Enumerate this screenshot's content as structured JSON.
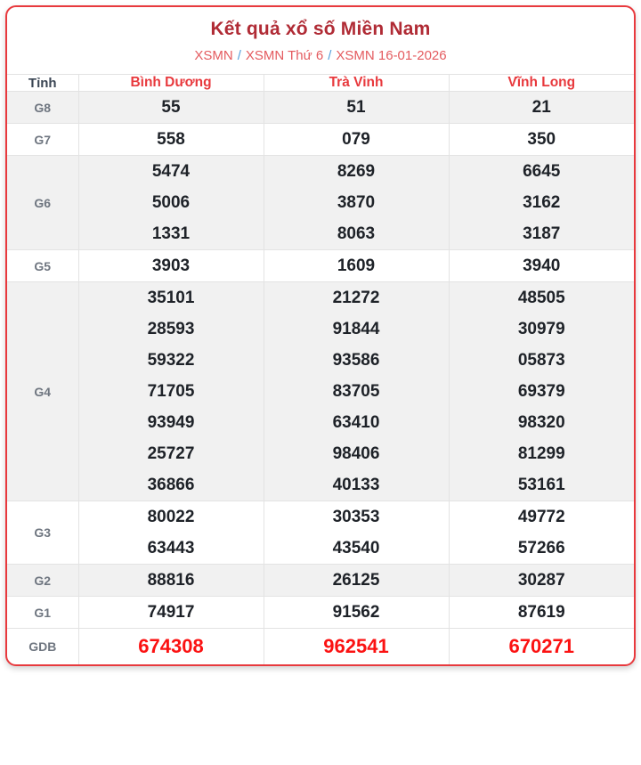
{
  "title": "Kết quả xổ số Miền Nam",
  "breadcrumb": {
    "separator": "/",
    "items": [
      {
        "label": "XSMN"
      },
      {
        "label": "XSMN Thứ 6"
      },
      {
        "label": "XSMN 16-01-2026"
      }
    ]
  },
  "table": {
    "header": [
      "Tỉnh",
      "Bình Dương",
      "Trà Vinh",
      "Vĩnh Long"
    ],
    "rows": [
      {
        "label": "G8",
        "shaded": true,
        "special": false,
        "cols": [
          [
            "55"
          ],
          [
            "51"
          ],
          [
            "21"
          ]
        ]
      },
      {
        "label": "G7",
        "shaded": false,
        "special": false,
        "cols": [
          [
            "558"
          ],
          [
            "079"
          ],
          [
            "350"
          ]
        ]
      },
      {
        "label": "G6",
        "shaded": true,
        "special": false,
        "cols": [
          [
            "5474",
            "5006",
            "1331"
          ],
          [
            "8269",
            "3870",
            "8063"
          ],
          [
            "6645",
            "3162",
            "3187"
          ]
        ]
      },
      {
        "label": "G5",
        "shaded": false,
        "special": false,
        "cols": [
          [
            "3903"
          ],
          [
            "1609"
          ],
          [
            "3940"
          ]
        ]
      },
      {
        "label": "G4",
        "shaded": true,
        "special": false,
        "cols": [
          [
            "35101",
            "28593",
            "59322",
            "71705",
            "93949",
            "25727",
            "36866"
          ],
          [
            "21272",
            "91844",
            "93586",
            "83705",
            "63410",
            "98406",
            "40133"
          ],
          [
            "48505",
            "30979",
            "05873",
            "69379",
            "98320",
            "81299",
            "53161"
          ]
        ]
      },
      {
        "label": "G3",
        "shaded": false,
        "special": false,
        "cols": [
          [
            "80022",
            "63443"
          ],
          [
            "30353",
            "43540"
          ],
          [
            "49772",
            "57266"
          ]
        ]
      },
      {
        "label": "G2",
        "shaded": true,
        "special": false,
        "cols": [
          [
            "88816"
          ],
          [
            "26125"
          ],
          [
            "30287"
          ]
        ]
      },
      {
        "label": "G1",
        "shaded": false,
        "special": false,
        "cols": [
          [
            "74917"
          ],
          [
            "91562"
          ],
          [
            "87619"
          ]
        ]
      },
      {
        "label": "GDB",
        "shaded": false,
        "special": true,
        "cols": [
          [
            "674308"
          ],
          [
            "962541"
          ],
          [
            "670271"
          ]
        ]
      }
    ]
  },
  "colors": {
    "card_border": "#e8393d",
    "title_text": "#b02b35",
    "breadcrumb_link": "#e45b5f",
    "breadcrumb_separator": "#55a0dc",
    "province_header": "#e8393d",
    "number_text": "#1e2228",
    "special_number_text": "#fb1212",
    "shaded_row": "#f1f1f1",
    "cell_border": "#e3e3e3"
  }
}
